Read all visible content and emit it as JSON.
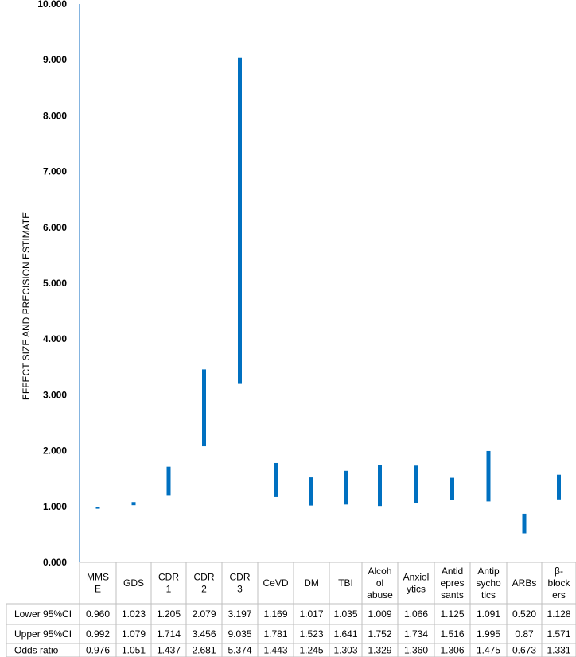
{
  "chart_data": {
    "type": "floating-bar",
    "ylabel": "EFFECT SIZE AND PRECISION ESTIMATE",
    "ylim": [
      0,
      10
    ],
    "yticks": [
      "0.000",
      "1.000",
      "2.000",
      "3.000",
      "4.000",
      "5.000",
      "6.000",
      "7.000",
      "8.000",
      "9.000",
      "10.000"
    ],
    "bar_color": "#0070c0",
    "categories": [
      [
        "MMS",
        "E"
      ],
      [
        "GDS"
      ],
      [
        "CDR",
        "1"
      ],
      [
        "CDR",
        "2"
      ],
      [
        "CDR",
        "3"
      ],
      [
        "CeVD"
      ],
      [
        "DM"
      ],
      [
        "TBI"
      ],
      [
        "Alcoh",
        "ol",
        "abuse"
      ],
      [
        "Anxiol",
        "ytics"
      ],
      [
        "Antid",
        "epres",
        "sants"
      ],
      [
        "Antip",
        "sycho",
        "tics"
      ],
      [
        "ARBs"
      ],
      [
        "β-",
        "block",
        "ers"
      ]
    ],
    "lower": [
      0.96,
      1.023,
      1.205,
      2.079,
      3.197,
      1.169,
      1.017,
      1.035,
      1.009,
      1.066,
      1.125,
      1.091,
      0.52,
      1.128
    ],
    "upper": [
      0.992,
      1.079,
      1.714,
      3.456,
      9.035,
      1.781,
      1.523,
      1.641,
      1.752,
      1.734,
      1.516,
      1.995,
      0.87,
      1.571
    ],
    "odds": [
      0.976,
      1.051,
      1.437,
      2.681,
      5.374,
      1.443,
      1.245,
      1.303,
      1.329,
      1.36,
      1.306,
      1.475,
      0.673,
      1.331
    ],
    "table": {
      "row_labels": [
        "Lower 95%CI",
        "Upper 95%CI",
        "Odds ratio"
      ],
      "rows": [
        [
          "0.960",
          "1.023",
          "1.205",
          "2.079",
          "3.197",
          "1.169",
          "1.017",
          "1.035",
          "1.009",
          "1.066",
          "1.125",
          "1.091",
          "0.520",
          "1.128"
        ],
        [
          "0.992",
          "1.079",
          "1.714",
          "3.456",
          "9.035",
          "1.781",
          "1.523",
          "1.641",
          "1.752",
          "1.734",
          "1.516",
          "1.995",
          "0.87",
          "1.571"
        ],
        [
          "0.976",
          "1.051",
          "1.437",
          "2.681",
          "5.374",
          "1.443",
          "1.245",
          "1.303",
          "1.329",
          "1.360",
          "1.306",
          "1.475",
          "0.673",
          "1.331"
        ]
      ]
    }
  }
}
